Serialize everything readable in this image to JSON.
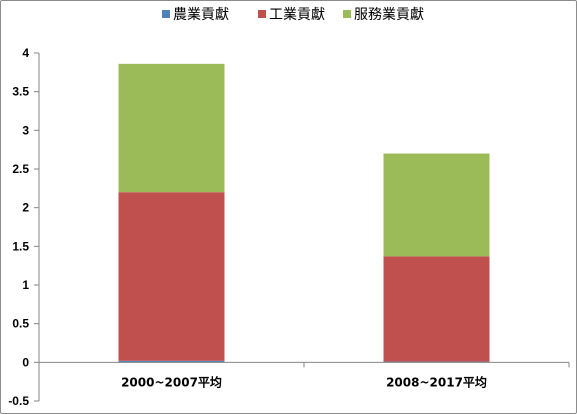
{
  "chart_data": {
    "type": "bar",
    "stacked": true,
    "categories": [
      "2000~2007平均",
      "2008~2017平均"
    ],
    "series": [
      {
        "name": "農業貢獻",
        "color": "#4f81bd",
        "values": [
          0.02,
          0.01
        ]
      },
      {
        "name": "工業貢獻",
        "color": "#c0504d",
        "values": [
          2.18,
          1.36
        ]
      },
      {
        "name": "服務業貢獻",
        "color": "#9bbb59",
        "values": [
          1.66,
          1.33
        ]
      }
    ],
    "yticks": [
      "-0.5",
      "0",
      "0.5",
      "1",
      "1.5",
      "2",
      "2.5",
      "3",
      "3.5",
      "4"
    ],
    "ylim": [
      -0.5,
      4
    ],
    "grid": false,
    "legend": "top",
    "title": "",
    "xlabel": "",
    "ylabel": ""
  }
}
